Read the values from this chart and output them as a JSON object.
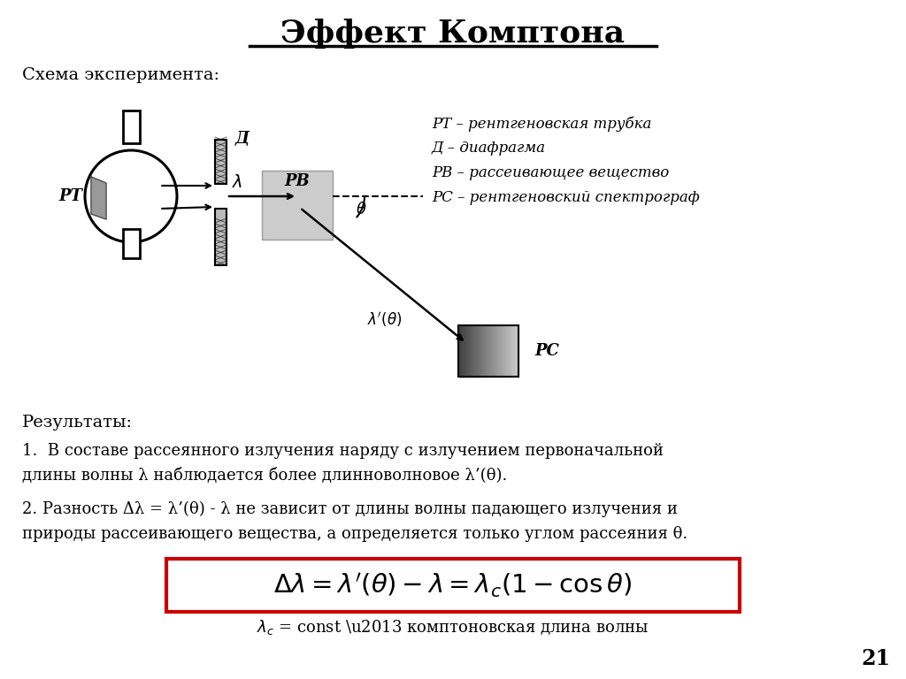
{
  "title": "Эффект Комптона",
  "bg_color": "#ffffff",
  "schema_label": "Схема эксперимента:",
  "legend_lines": [
    "РТ – рентгеновская трубка",
    "Д – диафрагма",
    "РВ – рассеивающее вещество",
    "РС – рентгеновский спектрограф"
  ],
  "result_label": "Результаты:",
  "res1a": "1.  В составе рассеянного излучения наряду с излучением первоначальной",
  "res1b": "длины волны λ наблюдается более длинноволновое λ’(θ).",
  "res2a": "2. Разность Δλ = λ’(θ) - λ не зависит от длины волны падающего излучения и",
  "res2b": "природы рассеивающего вещества, а определяется только углом рассеяния θ.",
  "footnote": "λc = const – комптоновская длина волны",
  "page_num": "21",
  "formula_box_color": "#cc0000",
  "fig_width": 10.24,
  "fig_height": 7.68,
  "dpi": 100
}
